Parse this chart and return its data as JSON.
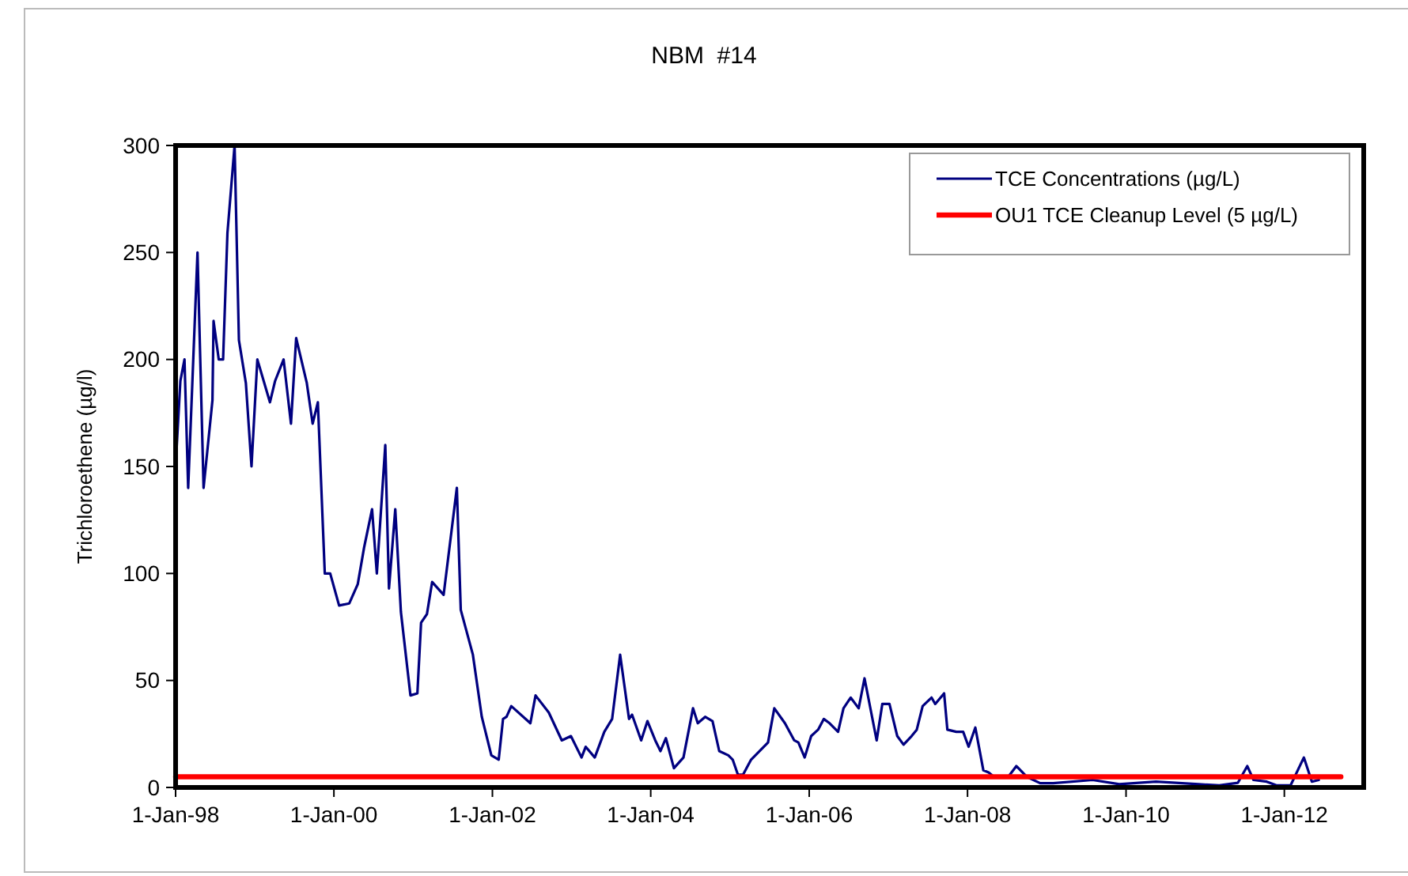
{
  "chart_data": {
    "type": "line",
    "title": "NBM  #14",
    "ylabel": "Trichloroethene (µg/l)",
    "xlim": [
      "1998-01-01",
      "2013-01-01"
    ],
    "xticks": [
      {
        "value": "1998-01-01",
        "label": "1-Jan-98"
      },
      {
        "value": "2000-01-01",
        "label": "1-Jan-00"
      },
      {
        "value": "2002-01-01",
        "label": "1-Jan-02"
      },
      {
        "value": "2004-01-01",
        "label": "1-Jan-04"
      },
      {
        "value": "2006-01-01",
        "label": "1-Jan-06"
      },
      {
        "value": "2008-01-01",
        "label": "1-Jan-08"
      },
      {
        "value": "2010-01-01",
        "label": "1-Jan-10"
      },
      {
        "value": "2012-01-01",
        "label": "1-Jan-12"
      }
    ],
    "ylim": [
      0,
      300
    ],
    "yticks": [
      0,
      50,
      100,
      150,
      200,
      250,
      300
    ],
    "legend": "top right",
    "series": [
      {
        "name": "TCE Concentrations (µg/L)",
        "color": "#000080",
        "x": [
          "1998-01-01",
          "1998-01-23",
          "1998-02-11",
          "1998-02-28",
          "1998-04-12",
          "1998-05-10",
          "1998-06-20",
          "1998-06-25",
          "1998-07-19",
          "1998-08-08",
          "1998-08-28",
          "1998-09-30",
          "1998-10-20",
          "1998-11-21",
          "1998-12-17",
          "1999-01-13",
          "1999-03-12",
          "1999-04-05",
          "1999-05-14",
          "1999-06-17",
          "1999-07-11",
          "1999-08-29",
          "1999-09-25",
          "1999-10-19",
          "1999-11-20",
          "1999-12-15",
          "2000-01-25",
          "2000-03-12",
          "2000-04-20",
          "2000-05-19",
          "2000-06-25",
          "2000-07-17",
          "2000-08-25",
          "2000-09-11",
          "2000-10-10",
          "2000-11-05",
          "2000-12-19",
          "2001-01-20",
          "2001-02-06",
          "2001-03-05",
          "2001-03-29",
          "2001-05-21",
          "2001-07-21",
          "2001-08-08",
          "2001-10-03",
          "2001-11-13",
          "2001-12-27",
          "2002-01-30",
          "2002-02-19",
          "2002-03-07",
          "2002-03-29",
          "2002-06-25",
          "2002-07-19",
          "2002-09-18",
          "2002-11-17",
          "2002-12-29",
          "2003-02-16",
          "2003-03-07",
          "2003-04-18",
          "2003-06-01",
          "2003-07-07",
          "2003-08-13",
          "2003-09-23",
          "2003-10-07",
          "2003-11-18",
          "2003-12-17",
          "2004-01-22",
          "2004-02-15",
          "2004-03-11",
          "2004-04-17",
          "2004-05-31",
          "2004-07-14",
          "2004-08-05",
          "2004-09-08",
          "2004-10-12",
          "2004-11-12",
          "2004-12-24",
          "2005-01-13",
          "2005-02-06",
          "2005-03-02",
          "2005-04-08",
          "2005-06-25",
          "2005-07-24",
          "2005-09-11",
          "2005-10-24",
          "2005-11-12",
          "2005-12-11",
          "2006-01-10",
          "2006-02-11",
          "2006-03-09",
          "2006-04-05",
          "2006-05-14",
          "2006-06-08",
          "2006-07-11",
          "2006-08-17",
          "2006-09-13",
          "2006-11-08",
          "2006-12-04",
          "2007-01-06",
          "2007-02-11",
          "2007-03-12",
          "2007-04-18",
          "2007-05-12",
          "2007-06-08",
          "2007-07-19",
          "2007-08-05",
          "2007-09-15",
          "2007-09-30",
          "2007-11-10",
          "2007-12-12",
          "2008-01-06",
          "2008-02-06",
          "2008-03-14",
          "2008-04-07",
          "2008-05-02",
          "2008-07-07",
          "2008-08-13",
          "2008-09-30",
          "2008-12-01",
          "2009-01-30",
          "2009-07-31",
          "2009-12-01",
          "2010-05-19",
          "2010-12-01",
          "2011-03-07",
          "2011-06-01",
          "2011-07-14",
          "2011-08-12",
          "2011-10-12",
          "2011-11-25",
          "2012-01-30",
          "2012-03-31",
          "2012-05-07",
          "2012-06-08"
        ],
        "values": [
          150,
          190,
          200,
          140,
          250,
          140,
          181,
          218,
          200,
          200,
          259,
          300,
          209,
          189,
          150,
          200,
          180,
          190,
          200,
          170,
          210,
          189,
          170,
          180,
          100,
          100,
          85,
          86,
          95,
          112,
          130,
          100,
          160,
          93,
          130,
          82,
          43,
          44,
          77,
          81,
          96,
          90,
          140,
          83,
          62,
          33,
          15,
          13,
          32,
          33,
          38,
          30,
          43,
          35,
          22,
          24,
          14,
          19,
          14,
          26,
          32,
          62,
          32,
          34,
          22,
          31,
          22,
          17,
          23,
          9,
          14,
          37,
          30,
          33,
          31,
          17,
          15,
          13,
          6,
          6,
          13,
          21,
          37,
          30,
          22,
          21,
          14,
          24,
          27,
          32,
          30,
          26,
          37,
          42,
          37,
          51,
          22,
          39,
          39,
          24,
          20,
          24,
          27,
          38,
          42,
          39,
          44,
          27,
          26,
          26,
          19,
          28,
          8,
          7,
          5,
          5,
          10,
          5,
          2,
          2,
          3.5,
          1.5,
          2.7,
          1.5,
          1,
          2.2,
          10,
          3.5,
          2.7,
          1,
          1,
          14,
          2.7,
          3.5
        ]
      },
      {
        "name": "OU1 TCE Cleanup Level (5 µg/L)",
        "color": "#ff0000",
        "x": [
          "1998-01-01",
          "2012-09-18"
        ],
        "values": [
          5,
          5
        ]
      }
    ]
  }
}
